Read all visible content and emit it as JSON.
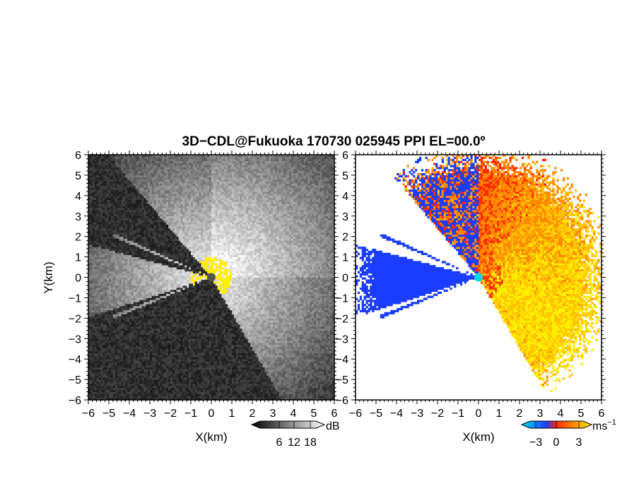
{
  "title": "3D−CDL@Fukuoka 170730 025945 PPI EL=00.0º",
  "chart_data": [
    {
      "type": "heatmap",
      "name": "left-panel",
      "xlabel": "X(km)",
      "ylabel": "Y(km)",
      "xlim": [
        -6,
        6
      ],
      "ylim": [
        -6,
        6
      ],
      "xticks": [
        "−6",
        "−5",
        "−4",
        "−3",
        "−2",
        "−1",
        "0",
        "1",
        "2",
        "3",
        "4",
        "5",
        "6"
      ],
      "yticks": [
        "6",
        "5",
        "4",
        "3",
        "2",
        "1",
        "0",
        "−1",
        "−2",
        "−3",
        "−4",
        "−5",
        "−6"
      ],
      "colorbar": {
        "unit": "dB",
        "ticks": [
          "6",
          "12",
          "18"
        ],
        "colors": [
          "#000000",
          "#ffffff"
        ]
      },
      "blank_color": "#2a2a2a",
      "flag_color": "#ffee00",
      "center_marker_color": "#555555"
    },
    {
      "type": "heatmap",
      "name": "right-panel",
      "xlabel": "X(km)",
      "ylabel": "",
      "xlim": [
        -6,
        6
      ],
      "ylim": [
        -6,
        6
      ],
      "xticks": [
        "−6",
        "−5",
        "−4",
        "−3",
        "−2",
        "−1",
        "0",
        "1",
        "2",
        "3",
        "4",
        "5",
        "6"
      ],
      "yticks": [
        "6",
        "5",
        "4",
        "3",
        "2",
        "1",
        "0",
        "−1",
        "−2",
        "−3",
        "−4",
        "−5",
        "−6"
      ],
      "colorbar": {
        "unit": "ms",
        "unit_sup": "−1",
        "ticks": [
          "−3",
          "0",
          "3"
        ],
        "colors": [
          "#00e0ff",
          "#1a3cff",
          "#ff2a00",
          "#ffee00"
        ]
      },
      "center_marker_color": "#00d8e8"
    }
  ]
}
